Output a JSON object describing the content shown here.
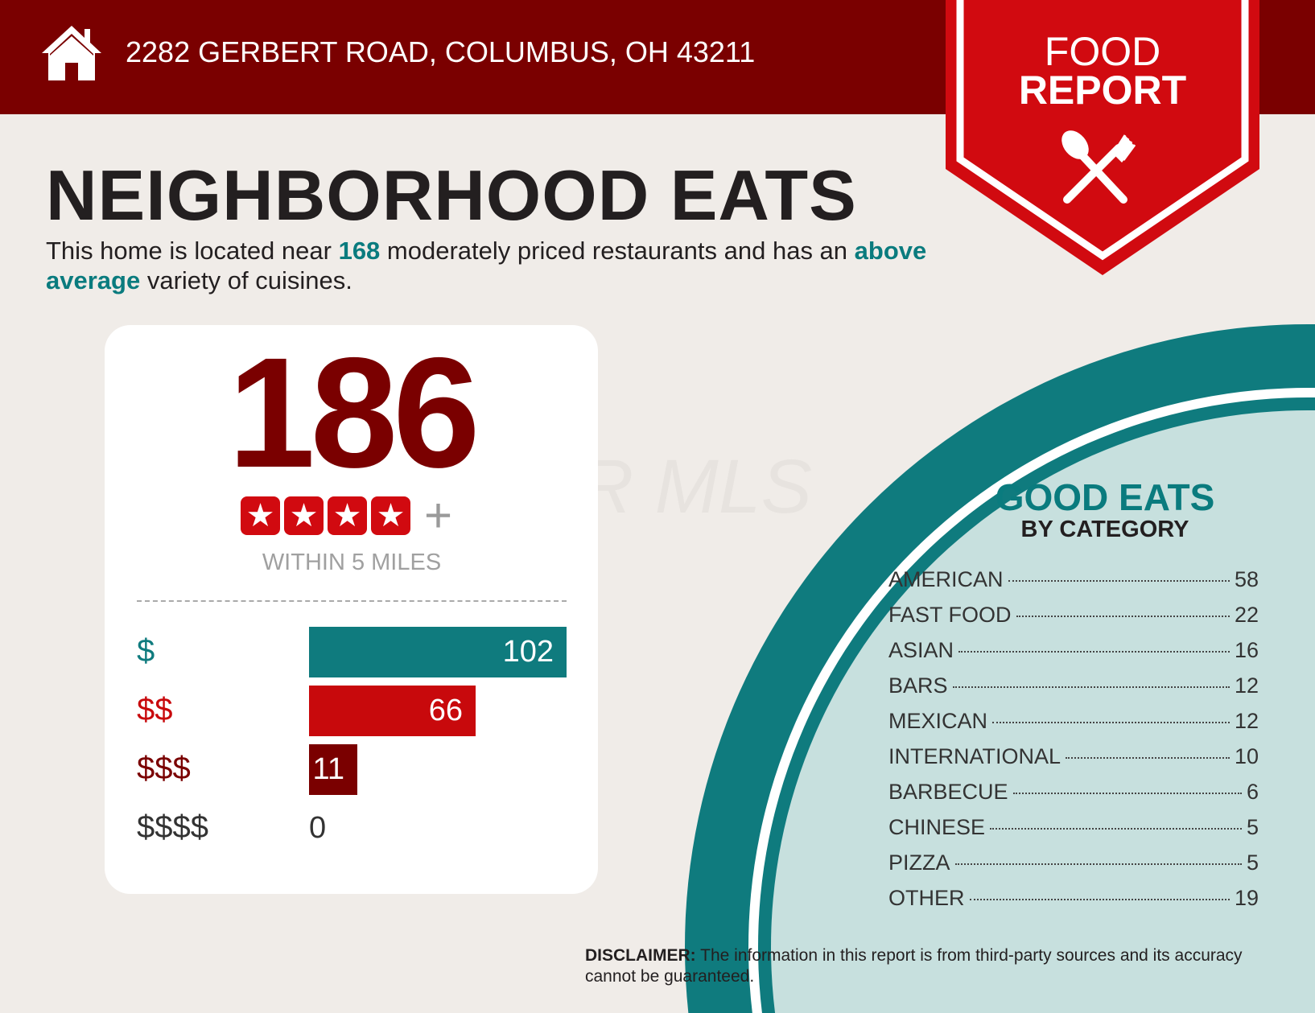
{
  "header": {
    "address": "2282 GERBERT ROAD, COLUMBUS, OH 43211",
    "icon": "home-icon"
  },
  "banner": {
    "line1": "FOOD",
    "line2": "REPORT",
    "icon": "spoon-fork-icon"
  },
  "title": "NEIGHBORHOOD EATS",
  "summary": {
    "part1": "This home is located near ",
    "count": "168",
    "part2": " moderately priced restaurants and has an ",
    "variety": "above average",
    "part3": " variety of cuisines."
  },
  "watermark": "CR MLS",
  "card": {
    "total": "186",
    "rating_stars": 4,
    "rating_plus": "+",
    "within": "WITHIN 5 MILES",
    "price_levels": [
      {
        "label": "$",
        "value": 102,
        "color": "#0f7b7e"
      },
      {
        "label": "$$",
        "value": 66,
        "color": "#c8090c"
      },
      {
        "label": "$$$",
        "value": 11,
        "color": "#7a0000"
      },
      {
        "label": "$$$$",
        "value": 0,
        "color": "#333333"
      }
    ]
  },
  "good_eats": {
    "title": "GOOD EATS",
    "subtitle": "BY CATEGORY",
    "categories": [
      {
        "name": "AMERICAN",
        "count": "58"
      },
      {
        "name": "FAST FOOD",
        "count": "22"
      },
      {
        "name": "ASIAN",
        "count": "16"
      },
      {
        "name": "BARS",
        "count": "12"
      },
      {
        "name": "MEXICAN",
        "count": "12"
      },
      {
        "name": "INTERNATIONAL",
        "count": "10"
      },
      {
        "name": "BARBECUE",
        "count": "6"
      },
      {
        "name": "CHINESE",
        "count": "5"
      },
      {
        "name": "PIZZA",
        "count": "5"
      },
      {
        "name": "OTHER",
        "count": "19"
      }
    ]
  },
  "disclaimer": {
    "label": "DISCLAIMER:",
    "text": " The information in this report is from third-party sources and its accuracy cannot be guaranteed."
  },
  "colors": {
    "header": "#7a0000",
    "banner": "#d10a10",
    "teal": "#0f7b7e",
    "light_teal": "#c7e0de",
    "background": "#f0ece8"
  }
}
